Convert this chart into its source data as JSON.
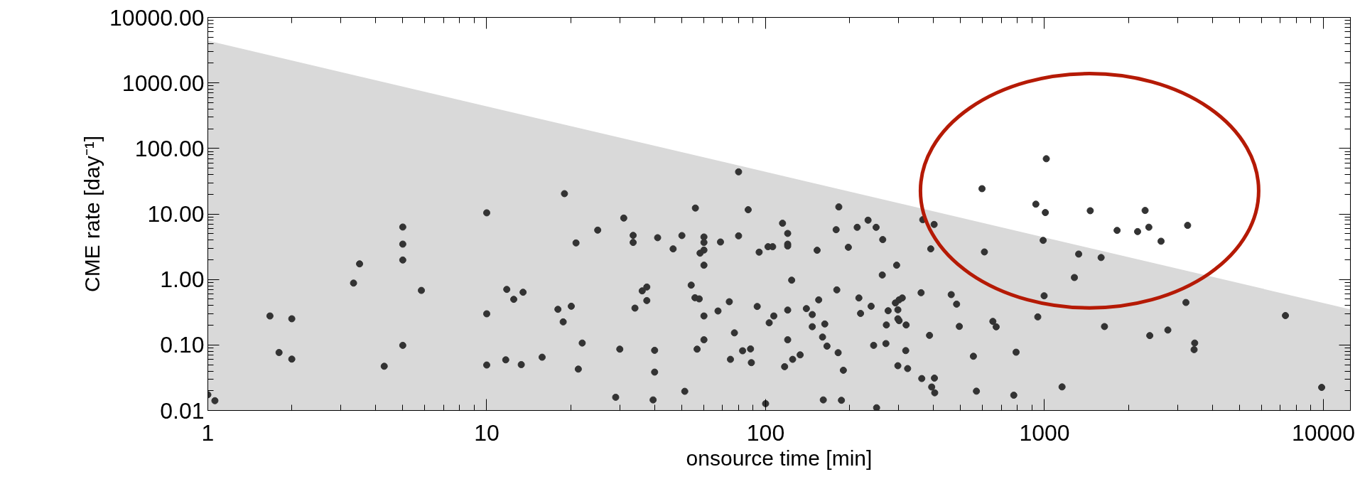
{
  "chart_data": {
    "type": "scatter",
    "xlabel": "onsource time [min]",
    "ylabel": "CME rate [day⁻¹]",
    "log": "xy",
    "grid": false,
    "xlim": [
      1,
      12500
    ],
    "ylim": [
      0.01,
      10000
    ],
    "xticks": [
      1,
      10,
      100,
      1000,
      10000
    ],
    "yticks": [
      {
        "value": 0.01,
        "label": "0.01"
      },
      {
        "value": 0.1,
        "label": "0.10"
      },
      {
        "value": 1,
        "label": "1.00"
      },
      {
        "value": 10,
        "label": "10.00"
      },
      {
        "value": 100,
        "label": "100.00"
      },
      {
        "value": 1000,
        "label": "1000.00"
      },
      {
        "value": 10000,
        "label": "10000.00"
      }
    ],
    "series": [
      {
        "type": "area",
        "color": "#d9d9d9",
        "x": [
          1,
          12500
        ],
        "values": [
          4400,
          0.35
        ]
      },
      {
        "color": "#333333",
        "marker": "circle",
        "x": [
          1.0,
          1.06,
          1.67,
          1.8,
          2.0,
          2.0,
          3.33,
          3.5,
          4.29,
          5.0,
          5.0,
          5.0,
          5.0,
          5.83,
          10,
          10,
          10,
          11.8,
          11.7,
          19.0,
          80.0,
          56.0,
          86.6,
          31.0,
          25.0,
          20.9,
          33.5,
          33.5,
          41.0,
          50.1,
          46.6,
          60.1,
          60.1,
          60.1,
          58.2,
          60.1,
          68.9,
          80.0,
          94.8,
          102,
          106,
          115,
          120,
          120,
          120,
          124,
          12.5,
          13.5,
          18.0,
          20.1,
          18.8,
          22.0,
          21.3,
          13.3,
          15.8,
          30.0,
          29.0,
          40.0,
          40.0,
          39.5,
          51.3,
          34.0,
          36.1,
          37.5,
          37.5,
          54.1,
          55.8,
          57.8,
          60.1,
          60.1,
          56.8,
          67.5,
          74.1,
          77.3,
          74.8,
          82.7,
          88.3,
          88.9,
          93.3,
          100,
          103,
          107,
          120,
          120,
          117,
          125,
          1015,
          597,
          931,
          1007,
          989,
          609,
          1280,
          997,
          946,
          1156,
          183,
          179,
          153,
          198,
          213,
          233,
          249,
          263,
          295,
          262,
          366,
          402,
          391,
          180,
          155,
          140,
          147,
          147,
          163,
          160,
          166,
          182,
          190,
          161,
          187,
          250,
          133,
          216,
          239,
          219,
          275,
          292,
          301,
          309,
          298,
          298,
          301,
          271,
          319,
          270,
          244,
          318,
          298,
          323,
          361,
          387,
          363,
          403,
          394,
          404,
          463,
          484,
          495,
          556,
          570,
          653,
          671,
          791,
          776,
          1459,
          2295,
          1821,
          2157,
          2367,
          2618,
          3260,
          1326,
          1596,
          3215,
          1641,
          2385,
          2769,
          3456,
          3439,
          7310,
          9860
        ],
        "values": [
          0.0174,
          0.0141,
          0.277,
          0.0767,
          0.251,
          0.0608,
          0.88,
          1.73,
          0.0473,
          6.31,
          3.46,
          1.98,
          0.0986,
          0.68,
          10.4,
          0.299,
          0.0494,
          0.705,
          0.0593,
          20.4,
          43.9,
          12.3,
          11.6,
          8.65,
          5.66,
          3.61,
          4.71,
          3.67,
          4.34,
          4.68,
          2.93,
          4.45,
          3.67,
          2.81,
          2.52,
          1.65,
          3.73,
          4.63,
          2.61,
          3.16,
          3.16,
          7.21,
          5.04,
          3.46,
          3.24,
          0.975,
          0.497,
          0.638,
          0.35,
          0.39,
          0.225,
          0.107,
          0.0428,
          0.0501,
          0.065,
          0.0863,
          0.0159,
          0.0828,
          0.0385,
          0.0145,
          0.0196,
          0.365,
          0.67,
          0.766,
          0.476,
          0.819,
          0.526,
          0.505,
          0.277,
          0.12,
          0.0863,
          0.33,
          0.457,
          0.153,
          0.0603,
          0.0815,
          0.087,
          0.0537,
          0.387,
          0.0127,
          0.218,
          0.277,
          0.341,
          0.12,
          0.0466,
          0.0603,
          69.6,
          24.3,
          14.1,
          10.5,
          3.95,
          2.63,
          1.07,
          0.563,
          0.268,
          0.0229,
          12.8,
          5.75,
          2.79,
          3.1,
          6.25,
          8.03,
          6.25,
          4.06,
          1.65,
          1.17,
          8.17,
          6.91,
          2.93,
          0.693,
          0.488,
          0.359,
          0.291,
          0.19,
          0.209,
          0.132,
          0.096,
          0.0762,
          0.0411,
          0.0145,
          0.0143,
          0.011,
          0.0706,
          0.522,
          0.39,
          0.303,
          0.333,
          0.438,
          0.488,
          0.522,
          0.344,
          0.251,
          0.235,
          0.202,
          0.202,
          0.105,
          0.0986,
          0.082,
          0.0482,
          0.0436,
          0.627,
          0.14,
          0.0307,
          0.0312,
          0.0228,
          0.0186,
          0.587,
          0.42,
          0.192,
          0.0672,
          0.0197,
          0.229,
          0.189,
          0.0775,
          0.0171,
          11.2,
          11.3,
          5.61,
          5.38,
          6.27,
          3.83,
          6.69,
          2.44,
          2.16,
          0.445,
          0.191,
          0.139,
          0.169,
          0.107,
          0.0848,
          0.281,
          0.0225
        ]
      }
    ]
  }
}
